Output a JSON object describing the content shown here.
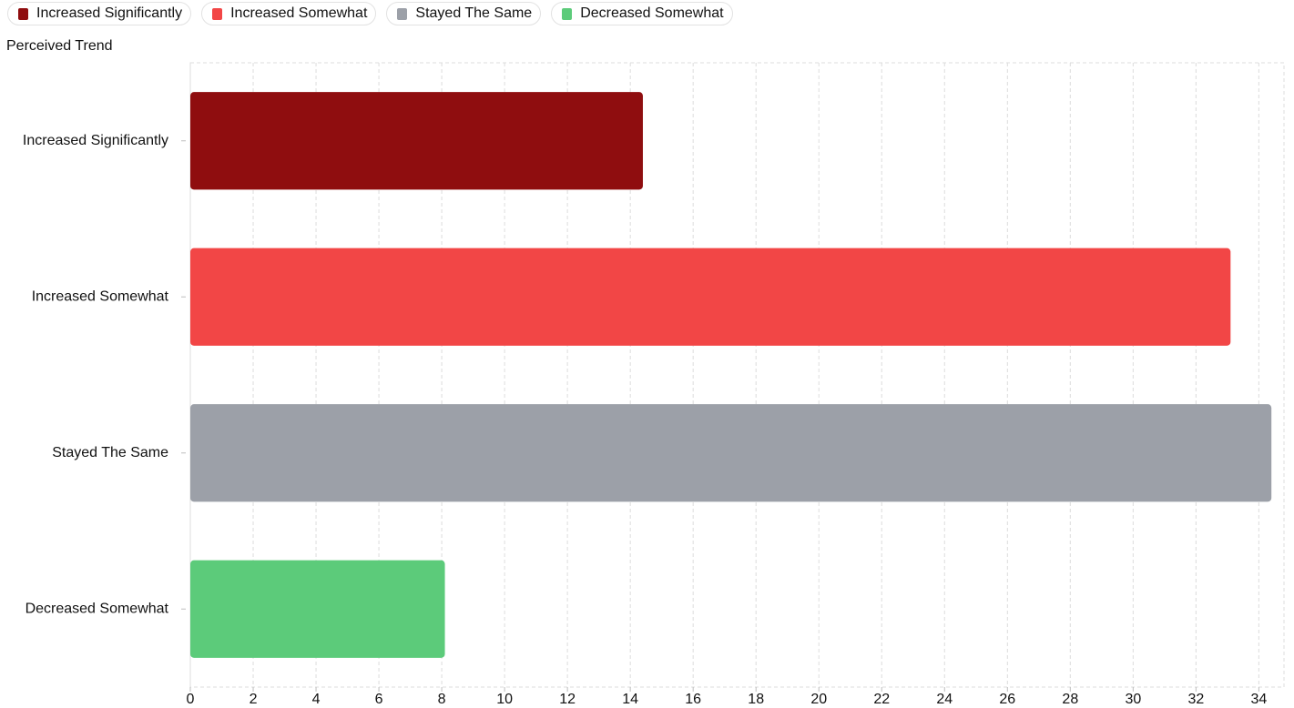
{
  "legend": {
    "items": [
      {
        "label": "Increased Significantly",
        "color": "#8f0d0f"
      },
      {
        "label": "Increased Somewhat",
        "color": "#f24646"
      },
      {
        "label": "Stayed The Same",
        "color": "#9ca0a8"
      },
      {
        "label": "Decreased Somewhat",
        "color": "#5ccb7a"
      }
    ]
  },
  "chart_data": {
    "type": "bar",
    "orientation": "horizontal",
    "ylabel": "Perceived Trend",
    "xlabel": "",
    "categories": [
      "Increased Significantly",
      "Increased Somewhat",
      "Stayed The Same",
      "Decreased Somewhat"
    ],
    "values": [
      14.4,
      33.1,
      34.4,
      8.1
    ],
    "colors": [
      "#8f0d0f",
      "#f24646",
      "#9ca0a8",
      "#5ccb7a"
    ],
    "xlim": [
      0,
      34.8
    ],
    "xticks": [
      0,
      2,
      4,
      6,
      8,
      10,
      12,
      14,
      16,
      18,
      20,
      22,
      24,
      26,
      28,
      30,
      32,
      34
    ],
    "grid": true,
    "legend_position": "top-left"
  }
}
